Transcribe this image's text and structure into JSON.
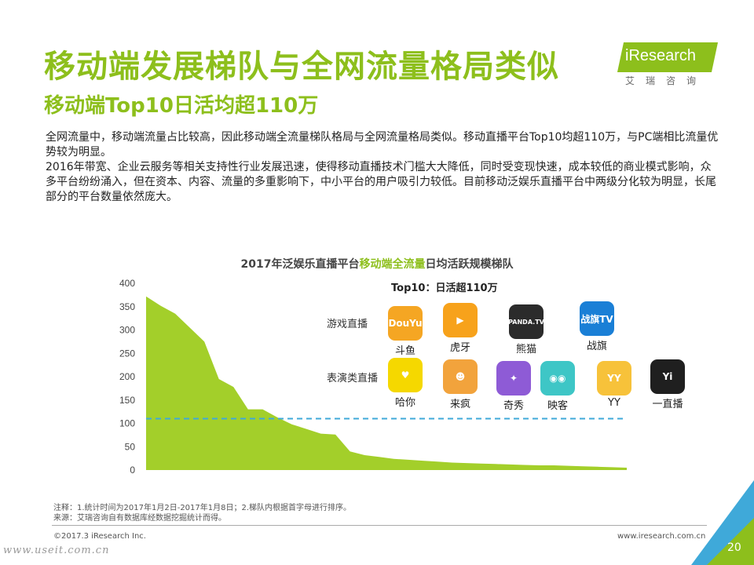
{
  "header": {
    "title": "移动端发展梯队与全网流量格局类似",
    "subtitle": "移动端Top10日活均超110万",
    "logo_text": "iResearch",
    "logo_sub": "艾瑞咨询"
  },
  "body": {
    "paragraph1": "全网流量中，移动端流量占比较高，因此移动端全流量梯队格局与全网流量格局类似。移动直播平台Top10均超110万，与PC端相比流量优势较为明显。",
    "paragraph2": "2016年带宽、企业云服务等相关支持性行业发展迅速，使得移动直播技术门槛大大降低，同时受变现快速，成本较低的商业模式影响，众多平台纷纷涌入，但在资本、内容、流量的多重影响下，中小平台的用户吸引力较低。目前移动泛娱乐直播平台中两级分化较为明显，长尾部分的平台数量依然庞大。"
  },
  "chart_title": {
    "part1": "2017年泛娱乐直播平台",
    "highlight": "移动端全流量",
    "part2": "日均活跃规模梯队"
  },
  "top10_label": "Top10：日活超110万",
  "rows": {
    "game": "游戏直播",
    "show": "表演类直播"
  },
  "apps": {
    "game": [
      {
        "name": "斗鱼",
        "icon": "douyu-icon",
        "color": "#f5a623",
        "glyph": "DouYu"
      },
      {
        "name": "虎牙",
        "icon": "huya-icon",
        "color": "#f7a21b",
        "glyph": "▶"
      },
      {
        "name": "熊猫",
        "icon": "panda-icon",
        "color": "#2b2b2b",
        "glyph": "PANDA.TV"
      },
      {
        "name": "战旗",
        "icon": "zhanqi-icon",
        "color": "#1a7fd6",
        "glyph": "战旗TV"
      }
    ],
    "show": [
      {
        "name": "哈你",
        "icon": "hani-icon",
        "color": "#f5d800",
        "glyph": "♥"
      },
      {
        "name": "来疯",
        "icon": "laifeng-icon",
        "color": "#f2a33c",
        "glyph": "☻"
      },
      {
        "name": "奇秀",
        "icon": "qixiu-icon",
        "color": "#8e5bd6",
        "glyph": "✦"
      },
      {
        "name": "映客",
        "icon": "inke-icon",
        "color": "#3ec6c6",
        "glyph": "◉◉"
      },
      {
        "name": "YY",
        "icon": "yy-icon",
        "color": "#f7c23a",
        "glyph": "YY"
      },
      {
        "name": "一直播",
        "icon": "yizhibo-icon",
        "color": "#1f1f1f",
        "glyph": "Yi"
      }
    ]
  },
  "chart_data": {
    "type": "area",
    "title": "2017年泛娱乐直播平台移动端全流量日均活跃规模梯队",
    "ylim": [
      0,
      400
    ],
    "yticks": [
      0,
      50,
      100,
      150,
      200,
      250,
      300,
      350,
      400
    ],
    "threshold": 110,
    "series_color": "#a3cf2a",
    "threshold_color": "#3fa9d9",
    "values": [
      372,
      352,
      335,
      305,
      275,
      195,
      178,
      130,
      130,
      113,
      98,
      88,
      78,
      76,
      40,
      32,
      28,
      24,
      22,
      20,
      18,
      16,
      15,
      14,
      13,
      12,
      11,
      10,
      10,
      9,
      8,
      7,
      6,
      5
    ]
  },
  "notes": {
    "line1": "注释：1.统计时间为2017年1月2日-2017年1月8日；2.梯队内根据首字母进行排序。",
    "line2": "来源：艾瑞咨询自有数据库经数据挖掘统计而得。"
  },
  "footer": {
    "copyright": "©2017.3 iResearch Inc.",
    "site": "www.iresearch.com.cn",
    "page": "20",
    "watermark": "www.useit.com.cn"
  }
}
